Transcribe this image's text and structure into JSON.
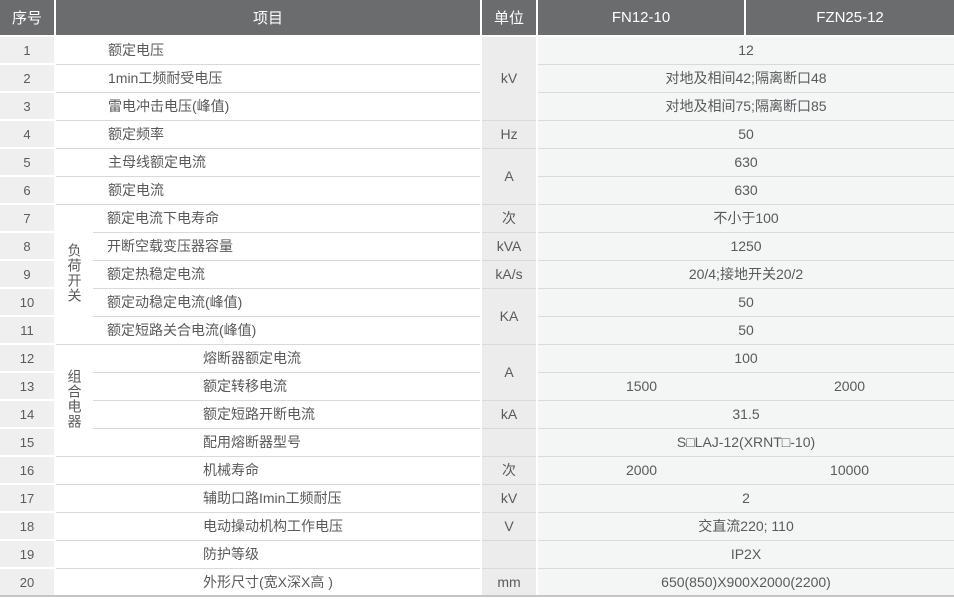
{
  "table": {
    "headers": {
      "index": "序号",
      "item": "项目",
      "unit": "单位",
      "model1": "FN12-10",
      "model2": "FZN25-12"
    },
    "groups": {
      "load_switch": "负荷开关",
      "combined_apparatus": "组合电器"
    },
    "rows": [
      {
        "no": "1",
        "item": "额定电压",
        "unit": "kV",
        "value": "12"
      },
      {
        "no": "2",
        "item": "1min工频耐受电压",
        "value": "对地及相间42;隔离断口48"
      },
      {
        "no": "3",
        "item": "雷电冲击电压(峰值)",
        "value": "对地及相间75;隔离断口85"
      },
      {
        "no": "4",
        "item": "额定频率",
        "unit": "Hz",
        "value": "50"
      },
      {
        "no": "5",
        "item": "主母线额定电流",
        "unit": "A",
        "value": "630"
      },
      {
        "no": "6",
        "item": "额定电流",
        "value": "630"
      },
      {
        "no": "7",
        "item": "额定电流下电寿命",
        "unit": "次",
        "value": "不小于100"
      },
      {
        "no": "8",
        "item": "开断空载变压器容量",
        "unit": "kVA",
        "value": "1250"
      },
      {
        "no": "9",
        "item": "额定热稳定电流",
        "unit": "kA/s",
        "value": "20/4;接地开关20/2"
      },
      {
        "no": "10",
        "item": "额定动稳定电流(峰值)",
        "unit": "KA",
        "value": "50"
      },
      {
        "no": "11",
        "item": "额定短路关合电流(峰值)",
        "value": "50"
      },
      {
        "no": "12",
        "item": "熔断器额定电流",
        "unit": "A",
        "value": "100"
      },
      {
        "no": "13",
        "item": "额定转移电流",
        "value1": "1500",
        "value2": "2000"
      },
      {
        "no": "14",
        "item": "额定短路开断电流",
        "unit": "kA",
        "value": "31.5"
      },
      {
        "no": "15",
        "item": "配用熔断器型号",
        "unit": "",
        "value": "S□LAJ-12(XRNT□-10)"
      },
      {
        "no": "16",
        "item": "机械寿命",
        "unit": "次",
        "value1": "2000",
        "value2": "10000"
      },
      {
        "no": "17",
        "item": "辅助口路Imin工频耐压",
        "unit": "kV",
        "value": "2"
      },
      {
        "no": "18",
        "item": "电动操动机构工作电压",
        "unit": "V",
        "value": "交直流220; 110"
      },
      {
        "no": "19",
        "item": "防护等级",
        "unit": "",
        "value": "IP2X"
      },
      {
        "no": "20",
        "item": "外形尺寸(宽X深X高 )",
        "unit": "mm",
        "value": "650(850)X900X2000(2200)"
      }
    ]
  },
  "colors": {
    "header_bg": "#6b6c6e",
    "header_text": "#ffffff",
    "index_bg": "#efefef",
    "item_bg": "#ffffff",
    "unit_bg": "#ececec",
    "value_bg": "#f4f5f5",
    "row_line": "#d9d9d9",
    "gap": "#ffffff",
    "bottom_line": "#c4c5c6",
    "text": "#595a5c"
  }
}
